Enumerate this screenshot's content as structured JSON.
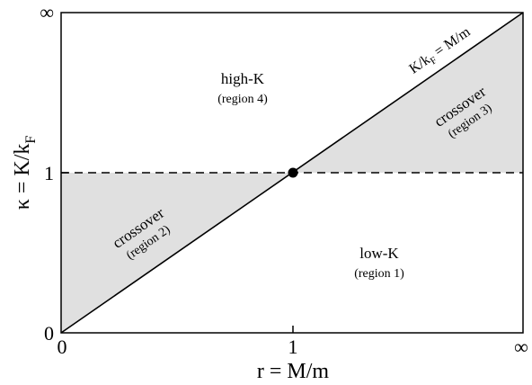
{
  "diagram": {
    "x_axis": {
      "label": "r = M/m",
      "ticks": [
        "0",
        "1",
        "∞"
      ]
    },
    "y_axis": {
      "label_main": "κ = K/k",
      "label_sub": "F",
      "ticks": [
        "0",
        "1",
        "∞"
      ]
    },
    "diagonal_label": {
      "main": "K/k",
      "sub": "F",
      "rest": " = M/m"
    },
    "regions": [
      {
        "name": "high-K",
        "sub": "(region 4)"
      },
      {
        "name": "crossover",
        "sub": "(region 3)"
      },
      {
        "name": "crossover",
        "sub": "(region 2)"
      },
      {
        "name": "low-K",
        "sub": "(region 1)"
      }
    ],
    "colors": {
      "shaded": "#e0e0e0",
      "line": "#000000"
    }
  }
}
